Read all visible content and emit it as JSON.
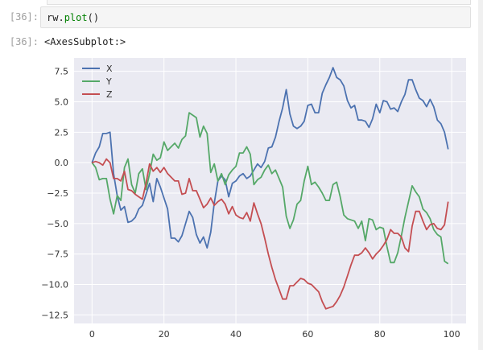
{
  "notebook": {
    "input_prompt": "[36]:",
    "output_prompt": "[36]:",
    "code": {
      "object": "rw",
      "dot": ".",
      "method": "plot",
      "args": "()"
    },
    "output_text": "<AxesSubplot:>"
  },
  "colors": {
    "X": "#4c72b0",
    "Y": "#55a868",
    "Z": "#c44e52",
    "plot_bg": "#eaeaf2",
    "grid": "#ffffff"
  },
  "chart_data": {
    "type": "line",
    "title": "",
    "xlabel": "",
    "ylabel": "",
    "xlim": [
      -5,
      104
    ],
    "ylim": [
      -13.2,
      8.6
    ],
    "xticks": [
      0,
      20,
      40,
      60,
      80,
      100
    ],
    "yticks": [
      7.5,
      5.0,
      2.5,
      0.0,
      -2.5,
      -5.0,
      -7.5,
      -10.0,
      -12.5
    ],
    "xtick_labels": [
      "0",
      "20",
      "40",
      "60",
      "80",
      "100"
    ],
    "ytick_labels": [
      "7.5",
      "5.0",
      "2.5",
      "0.0",
      "−2.5",
      "−5.0",
      "−7.5",
      "−10.0",
      "−12.5"
    ],
    "grid": true,
    "legend": "top-left",
    "x": [
      0,
      1,
      2,
      3,
      4,
      5,
      6,
      7,
      8,
      9,
      10,
      11,
      12,
      13,
      14,
      15,
      16,
      17,
      18,
      19,
      20,
      21,
      22,
      23,
      24,
      25,
      26,
      27,
      28,
      29,
      30,
      31,
      32,
      33,
      34,
      35,
      36,
      37,
      38,
      39,
      40,
      41,
      42,
      43,
      44,
      45,
      46,
      47,
      48,
      49,
      50,
      51,
      52,
      53,
      54,
      55,
      56,
      57,
      58,
      59,
      60,
      61,
      62,
      63,
      64,
      65,
      66,
      67,
      68,
      69,
      70,
      71,
      72,
      73,
      74,
      75,
      76,
      77,
      78,
      79,
      80,
      81,
      82,
      83,
      84,
      85,
      86,
      87,
      88,
      89,
      90,
      91,
      92,
      93,
      94,
      95,
      96,
      97,
      98,
      99
    ],
    "series": [
      {
        "name": "X",
        "values": [
          0.0,
          0.8,
          1.3,
          2.4,
          2.4,
          2.5,
          -0.9,
          -2.7,
          -3.9,
          -3.6,
          -4.9,
          -4.8,
          -4.5,
          -3.8,
          -3.5,
          -2.6,
          -1.7,
          -3.2,
          -1.3,
          -2.0,
          -2.9,
          -3.8,
          -6.2,
          -6.2,
          -6.5,
          -6.0,
          -5.0,
          -4.0,
          -4.5,
          -5.9,
          -6.6,
          -6.1,
          -7.0,
          -5.7,
          -3.3,
          -1.5,
          -1.1,
          -1.4,
          -2.8,
          -1.7,
          -1.5,
          -1.1,
          -0.9,
          -1.3,
          -1.1,
          -0.6,
          -0.1,
          -0.4,
          0.1,
          1.2,
          1.3,
          2.1,
          3.4,
          4.5,
          6.0,
          4.0,
          3.0,
          2.8,
          3.0,
          3.4,
          4.7,
          4.8,
          4.1,
          4.1,
          5.7,
          6.4,
          7.0,
          7.8,
          7.0,
          6.8,
          6.3,
          5.1,
          4.5,
          4.7,
          3.5,
          3.5,
          3.4,
          2.9,
          3.6,
          4.8,
          4.1,
          5.1,
          5.0,
          4.4,
          4.5,
          4.2,
          5.0,
          5.6,
          6.8,
          6.8,
          6.0,
          5.3,
          5.1,
          4.6,
          5.2,
          4.6,
          3.5,
          3.2,
          2.5,
          1.1
        ]
      },
      {
        "name": "Y",
        "values": [
          0.0,
          -0.4,
          -1.4,
          -1.3,
          -1.3,
          -3.0,
          -4.2,
          -2.7,
          -3.1,
          -0.4,
          0.3,
          -1.8,
          -2.5,
          -0.9,
          -0.5,
          -2.2,
          -0.9,
          0.7,
          0.2,
          0.4,
          1.7,
          1.0,
          1.3,
          1.6,
          1.2,
          1.9,
          2.2,
          4.1,
          3.9,
          3.7,
          2.1,
          3.0,
          2.4,
          -0.8,
          -0.1,
          -1.5,
          -0.9,
          -1.8,
          -1.0,
          -0.6,
          -0.3,
          0.8,
          0.8,
          1.3,
          0.7,
          -1.8,
          -1.4,
          -1.2,
          -0.6,
          -0.2,
          -0.9,
          -0.6,
          -1.3,
          -2.0,
          -4.4,
          -5.4,
          -4.7,
          -3.4,
          -3.1,
          -1.5,
          -0.3,
          -1.8,
          -1.6,
          -2.0,
          -2.5,
          -3.1,
          -3.1,
          -1.8,
          -1.6,
          -2.8,
          -4.3,
          -4.6,
          -4.7,
          -4.8,
          -5.4,
          -4.8,
          -6.4,
          -4.6,
          -4.7,
          -5.5,
          -5.3,
          -5.4,
          -6.9,
          -8.2,
          -8.2,
          -7.4,
          -6.0,
          -4.5,
          -3.2,
          -1.9,
          -2.4,
          -2.8,
          -3.8,
          -4.1,
          -4.6,
          -5.5,
          -5.9,
          -6.1,
          -8.1,
          -8.3
        ]
      },
      {
        "name": "Z",
        "values": [
          0.0,
          0.1,
          0.0,
          -0.2,
          0.3,
          0.0,
          -1.3,
          -1.3,
          -1.5,
          -0.7,
          -2.2,
          -2.3,
          -2.6,
          -2.8,
          -3.0,
          -1.7,
          -0.1,
          -0.7,
          -0.4,
          -0.8,
          -0.4,
          -0.9,
          -1.2,
          -1.5,
          -1.5,
          -2.6,
          -2.5,
          -1.3,
          -2.3,
          -2.3,
          -3.0,
          -3.7,
          -3.4,
          -2.9,
          -3.5,
          -3.2,
          -3.0,
          -3.4,
          -4.2,
          -3.6,
          -4.3,
          -4.5,
          -4.6,
          -4.1,
          -4.8,
          -3.3,
          -4.2,
          -5.0,
          -6.2,
          -7.5,
          -8.6,
          -9.6,
          -10.4,
          -11.2,
          -11.2,
          -10.1,
          -10.1,
          -9.8,
          -9.5,
          -9.6,
          -9.9,
          -10.0,
          -10.3,
          -10.6,
          -11.4,
          -12.0,
          -11.9,
          -11.8,
          -11.4,
          -10.9,
          -10.2,
          -9.3,
          -8.4,
          -7.6,
          -7.6,
          -7.4,
          -7.0,
          -7.4,
          -7.9,
          -7.5,
          -7.2,
          -6.8,
          -6.3,
          -5.5,
          -5.8,
          -5.8,
          -6.1,
          -7.0,
          -7.3,
          -5.2,
          -4.0,
          -4.0,
          -4.8,
          -5.5,
          -5.1,
          -5.0,
          -5.4,
          -5.5,
          -5.1,
          -3.2
        ]
      }
    ]
  }
}
